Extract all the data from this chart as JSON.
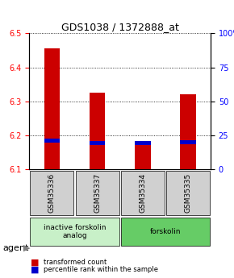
{
  "title": "GDS1038 / 1372888_at",
  "samples": [
    "GSM35336",
    "GSM35337",
    "GSM35334",
    "GSM35335"
  ],
  "bar_bottoms": [
    6.1,
    6.1,
    6.1,
    6.1
  ],
  "bar_tops": [
    6.455,
    6.325,
    6.175,
    6.32
  ],
  "percentile_values": [
    6.185,
    6.178,
    6.178,
    6.18
  ],
  "ylim": [
    6.1,
    6.5
  ],
  "yticks_left": [
    6.1,
    6.2,
    6.3,
    6.4,
    6.5
  ],
  "yticks_right": [
    0,
    25,
    50,
    75,
    100
  ],
  "bar_color": "#cc0000",
  "percentile_color": "#0000cc",
  "agent_groups": [
    {
      "label": "inactive forskolin\nanalog",
      "span": [
        0,
        2
      ],
      "color": "#c8f0c8"
    },
    {
      "label": "forskolin",
      "span": [
        2,
        4
      ],
      "color": "#66cc66"
    }
  ],
  "legend_red": "transformed count",
  "legend_blue": "percentile rank within the sample",
  "agent_label": "agent",
  "bar_width": 0.35
}
